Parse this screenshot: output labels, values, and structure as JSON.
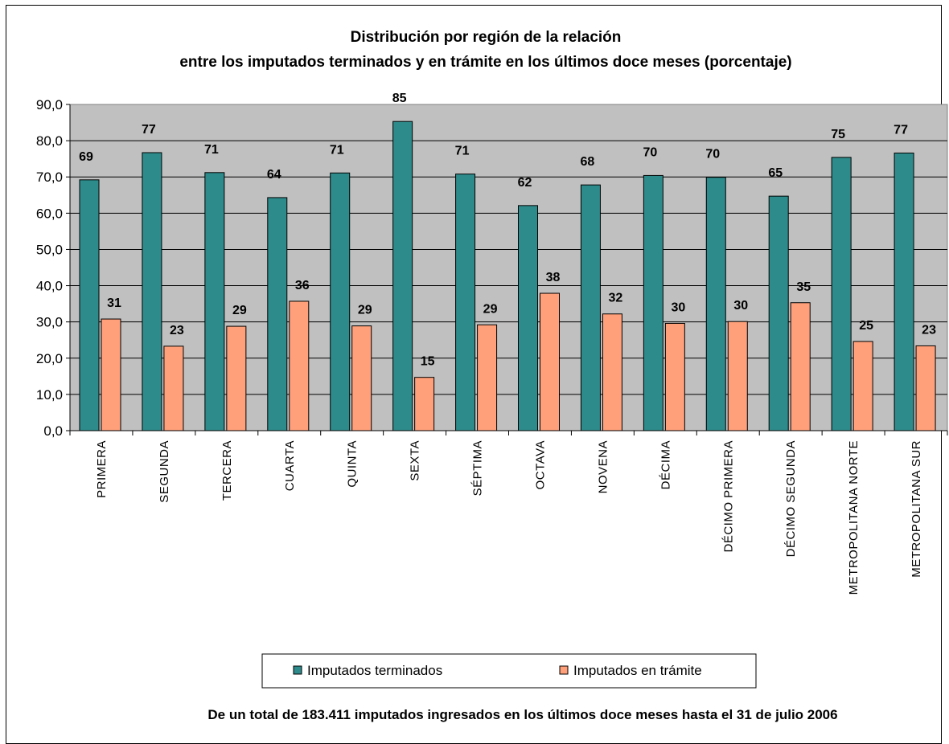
{
  "chart_data": {
    "type": "bar",
    "title": [
      "Distribución por región de la relación",
      "entre los imputados terminados y en trámite en los últimos doce meses (porcentaje)"
    ],
    "categories": [
      "PRIMERA",
      "SEGUNDA",
      "TERCERA",
      "CUARTA",
      "QUINTA",
      "SEXTA",
      "SÉPTIMA",
      "OCTAVA",
      "NOVENA",
      "DÉCIMA",
      "DÉCIMO PRIMERA",
      "DÉCIMO SEGUNDA",
      "METROPOLITANA NORTE",
      "METROPOLITANA SUR"
    ],
    "series": [
      {
        "name": "Imputados terminados",
        "color": "#2E8B8B",
        "values": [
          69.2,
          76.7,
          71.2,
          64.3,
          71.1,
          85.3,
          70.8,
          62.1,
          67.8,
          70.4,
          69.9,
          64.7,
          75.4,
          76.6
        ],
        "labels": [
          "69",
          "77",
          "71",
          "64",
          "71",
          "85",
          "71",
          "62",
          "68",
          "70",
          "70",
          "65",
          "75",
          "77"
        ]
      },
      {
        "name": "Imputados en trámite",
        "color": "#FFA07A",
        "values": [
          30.8,
          23.3,
          28.8,
          35.7,
          28.9,
          14.7,
          29.2,
          37.9,
          32.2,
          29.6,
          30.1,
          35.3,
          24.6,
          23.4
        ],
        "labels": [
          "31",
          "23",
          "29",
          "36",
          "29",
          "15",
          "29",
          "38",
          "32",
          "30",
          "30",
          "35",
          "25",
          "23"
        ]
      }
    ],
    "ylim": [
      0,
      90
    ],
    "yticks": [
      "0,0",
      "10,0",
      "20,0",
      "30,0",
      "40,0",
      "50,0",
      "60,0",
      "70,0",
      "80,0",
      "90,0"
    ],
    "grid": true,
    "legend": "bottom",
    "plot_background": "#C0C0C0",
    "footnote": "De un total de 183.411 imputados ingresados en los últimos doce meses hasta el 31 de julio 2006"
  }
}
